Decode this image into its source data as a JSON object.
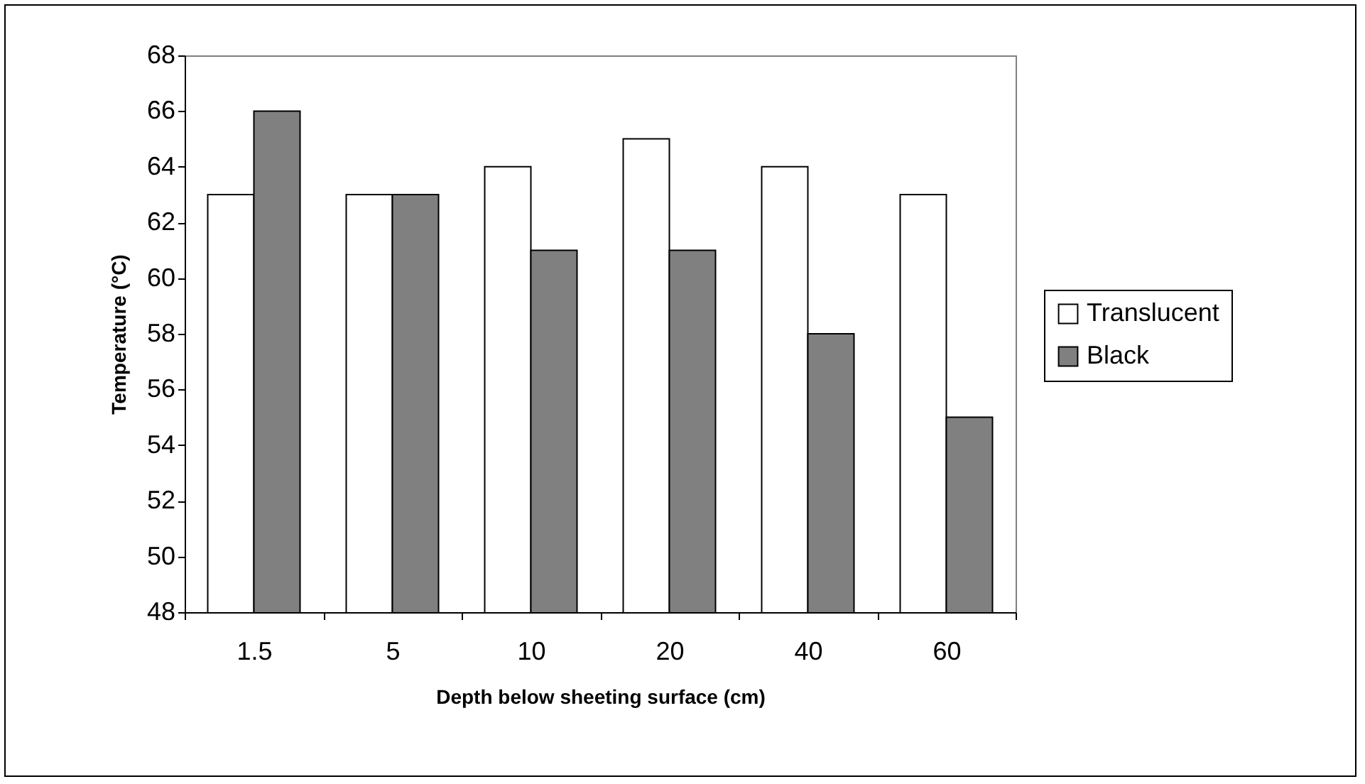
{
  "chart_data": {
    "type": "bar",
    "xlabel": "Depth below sheeting surface (cm)",
    "ylabel": "Temperature (°C)",
    "categories": [
      "1.5",
      "5",
      "10",
      "20",
      "40",
      "60"
    ],
    "series": [
      {
        "name": "Translucent",
        "color": "#ffffff",
        "values": [
          63,
          63,
          64,
          65,
          64,
          63
        ]
      },
      {
        "name": "Black",
        "color": "#808080",
        "values": [
          66,
          63,
          61,
          61,
          58,
          55
        ]
      }
    ],
    "ylim": [
      48,
      68
    ],
    "yticks": [
      48,
      50,
      52,
      54,
      56,
      58,
      60,
      62,
      64,
      66,
      68
    ],
    "grid": false,
    "legend": "right"
  }
}
